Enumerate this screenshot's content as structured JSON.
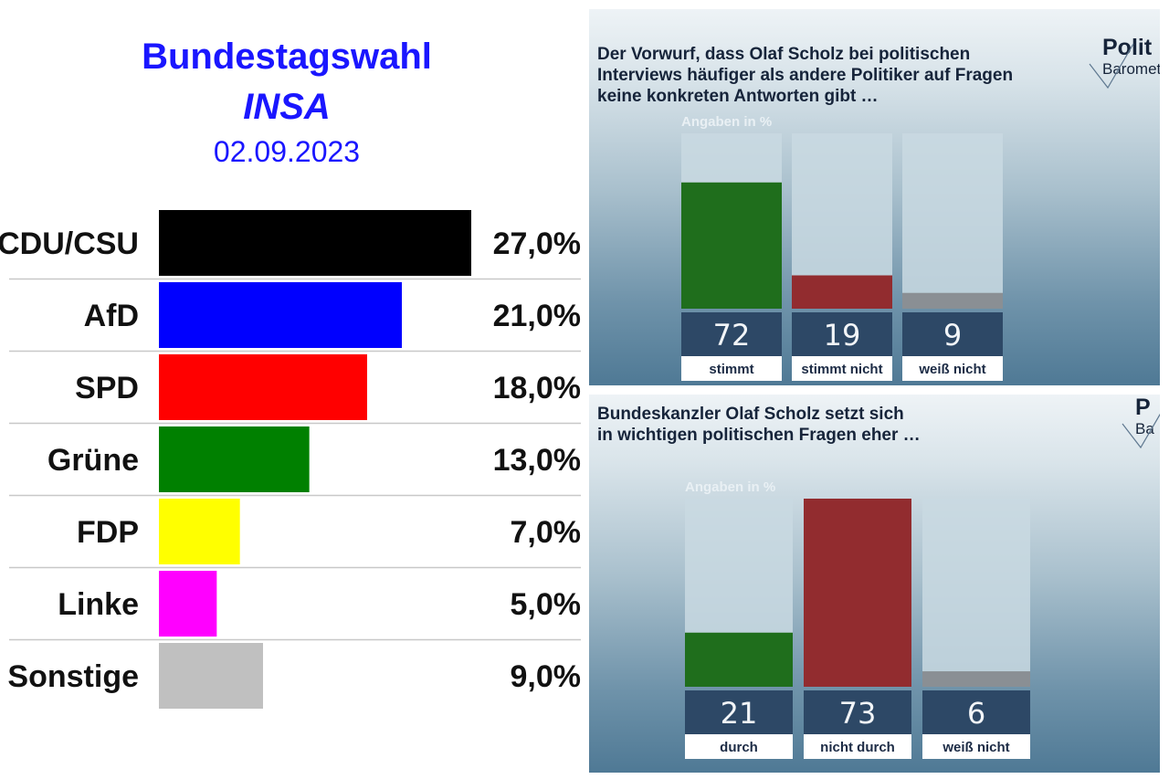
{
  "insa": {
    "title": "Bundestagswahl",
    "pollster": "INSA",
    "date": "02.09.2023",
    "chart_data": {
      "type": "bar",
      "orientation": "horizontal",
      "xlim": [
        0,
        27
      ],
      "categories": [
        "CDU/CSU",
        "AfD",
        "SPD",
        "Grüne",
        "FDP",
        "Linke",
        "Sonstige"
      ],
      "values": [
        27.0,
        21.0,
        18.0,
        13.0,
        7.0,
        5.0,
        9.0
      ],
      "value_labels": [
        "27,0%",
        "21,0%",
        "18,0%",
        "13,0%",
        "7,0%",
        "5,0%",
        "9,0%"
      ],
      "colors": [
        "#000000",
        "#0000ff",
        "#ff0000",
        "#008000",
        "#ffff00",
        "#ff00ff",
        "#c0c0c0"
      ]
    }
  },
  "politbarometer": {
    "logo_top": "Polit",
    "logo_bottom": "Baromet",
    "panels": [
      {
        "question": "Der Vorwurf, dass Olaf Scholz bei politischen\nInterviews häufiger als andere Politiker auf Fragen\nkeine konkreten Antworten gibt …",
        "chart_data": {
          "type": "bar",
          "unit_label": "Angaben in %",
          "ylim": [
            0,
            100
          ],
          "categories": [
            "stimmt",
            "stimmt nicht",
            "weiß nicht"
          ],
          "values": [
            72,
            19,
            9
          ],
          "value_labels": [
            "72",
            "19",
            "9"
          ],
          "colors": [
            "#1f6e1c",
            "#922c2f",
            "#8a8f94"
          ]
        }
      },
      {
        "question": "Bundeskanzler Olaf Scholz setzt sich\nin wichtigen politischen Fragen eher …",
        "logo_top": "P",
        "logo_bottom": "Ba",
        "chart_data": {
          "type": "bar",
          "unit_label": "Angaben in %",
          "ylim": [
            0,
            73
          ],
          "categories": [
            "durch",
            "nicht durch",
            "weiß nicht"
          ],
          "values": [
            21,
            73,
            6
          ],
          "value_labels": [
            "21",
            "73",
            "6"
          ],
          "colors": [
            "#1f6e1c",
            "#922c2f",
            "#8a8f94"
          ]
        }
      }
    ]
  }
}
